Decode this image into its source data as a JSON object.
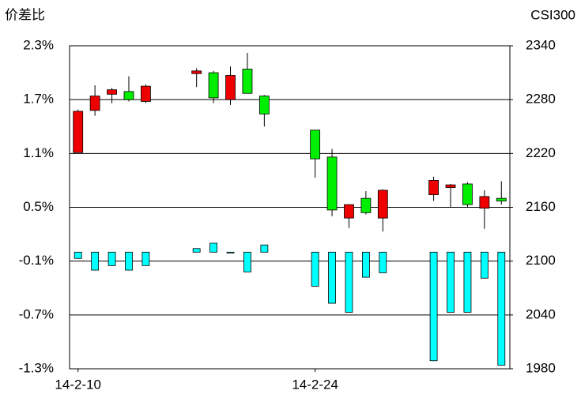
{
  "chart_data": {
    "type": "candlestick",
    "y_title": "价差比",
    "y2_title": "CSI300",
    "categories": [
      "14-2-10",
      null,
      null,
      null,
      null,
      null,
      null,
      null,
      null,
      null,
      null,
      null,
      null,
      null,
      "14-2-24",
      null,
      null,
      null,
      null,
      null,
      null,
      null,
      null,
      null,
      null,
      null
    ],
    "candles": {
      "axis": "y2",
      "up_color": "#ee0000",
      "down_color": "#00ee00",
      "open": [
        2221,
        2268,
        2286,
        2289,
        2278,
        null,
        null,
        2309,
        2310,
        2280,
        2314,
        2284,
        null,
        null,
        2246,
        2216,
        2148,
        2170,
        2148,
        null,
        null,
        2174,
        2182,
        2186,
        2159,
        2170
      ],
      "high": [
        2269,
        2296,
        2293,
        2306,
        2297,
        null,
        null,
        2315,
        2312,
        2317,
        2332,
        2285,
        null,
        null,
        2246,
        2225,
        2163,
        2178,
        2180,
        null,
        null,
        2194,
        2186,
        2188,
        2179,
        2189
      ],
      "low": [
        2221,
        2262,
        2276,
        2278,
        2276,
        null,
        null,
        2294,
        2276,
        2274,
        2287,
        2250,
        null,
        null,
        2193,
        2150,
        2137,
        2152,
        2133,
        null,
        null,
        2167,
        2160,
        2160,
        2136,
        2163
      ],
      "close": [
        2267,
        2284,
        2291,
        2280,
        2295,
        null,
        null,
        2312,
        2282,
        2307,
        2287,
        2264,
        null,
        null,
        2214,
        2157,
        2163,
        2154,
        2179,
        null,
        null,
        2190,
        2185,
        2163,
        2172,
        2167
      ]
    },
    "bars": {
      "axis": "y",
      "color": "#00ffff",
      "values": [
        -0.07,
        -0.2,
        -0.15,
        -0.2,
        -0.15,
        null,
        null,
        0.04,
        0.1,
        -0.01,
        -0.22,
        0.08,
        null,
        null,
        -0.38,
        -0.57,
        -0.67,
        -0.28,
        -0.23,
        null,
        null,
        -1.21,
        -0.67,
        -0.67,
        -0.29,
        -1.26
      ]
    },
    "ylim": [
      -1.3,
      2.3
    ],
    "yticks": [
      {
        "value": -1.3,
        "label": "-1.3%"
      },
      {
        "value": -0.7,
        "label": "-0.7%"
      },
      {
        "value": -0.1,
        "label": "-0.1%"
      },
      {
        "value": 0.5,
        "label": "0.5%"
      },
      {
        "value": 1.1,
        "label": "1.1%"
      },
      {
        "value": 1.7,
        "label": "1.7%"
      },
      {
        "value": 2.3,
        "label": "2.3%"
      }
    ],
    "y2lim": [
      1980,
      2340
    ],
    "y2ticks": [
      1980,
      2040,
      2100,
      2160,
      2220,
      2280,
      2340
    ],
    "grid": true
  }
}
